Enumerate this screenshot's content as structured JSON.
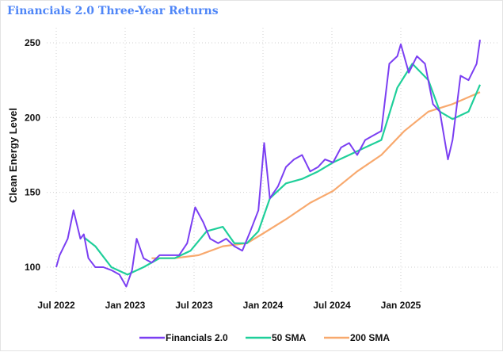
{
  "chart_data": {
    "type": "line",
    "title": "Financials 2.0 Three-Year Returns",
    "xlabel": "",
    "ylabel": "Clean Energy Level",
    "x_unit": "months since Jul 2022",
    "xlim": [
      0,
      37.5
    ],
    "ylim": [
      84,
      260
    ],
    "grid": true,
    "legend_position": "bottom",
    "yticks": [
      100,
      150,
      200,
      250
    ],
    "xticks": [
      {
        "t": 0,
        "label": "Jul 2022"
      },
      {
        "t": 6,
        "label": "Jan 2023"
      },
      {
        "t": 12,
        "label": "Jul 2023"
      },
      {
        "t": 18,
        "label": "Jan 2024"
      },
      {
        "t": 24,
        "label": "Jul 2024"
      },
      {
        "t": 30,
        "label": "Jan 2025"
      }
    ],
    "series": [
      {
        "name": "Financials 2.0",
        "color": "#7b3ff2",
        "points": [
          [
            0,
            100
          ],
          [
            0.3,
            108
          ],
          [
            1,
            119
          ],
          [
            1.5,
            138
          ],
          [
            2.1,
            119
          ],
          [
            2.4,
            122
          ],
          [
            2.8,
            106
          ],
          [
            3.4,
            100
          ],
          [
            4.1,
            100
          ],
          [
            4.8,
            98
          ],
          [
            5.5,
            95
          ],
          [
            6.1,
            87
          ],
          [
            6.6,
            98
          ],
          [
            7,
            119
          ],
          [
            7.6,
            106
          ],
          [
            8.3,
            103
          ],
          [
            9,
            108
          ],
          [
            10,
            108
          ],
          [
            10.7,
            108
          ],
          [
            11.4,
            116
          ],
          [
            12.1,
            140
          ],
          [
            12.8,
            130
          ],
          [
            13.4,
            119
          ],
          [
            14.1,
            116
          ],
          [
            14.8,
            119
          ],
          [
            15.5,
            114
          ],
          [
            16.2,
            111
          ],
          [
            16.9,
            124
          ],
          [
            17.6,
            138
          ],
          [
            18.1,
            183
          ],
          [
            18.6,
            146
          ],
          [
            19.3,
            154
          ],
          [
            20,
            167
          ],
          [
            20.7,
            172
          ],
          [
            21.4,
            175
          ],
          [
            22.1,
            164
          ],
          [
            22.8,
            167
          ],
          [
            23.4,
            172
          ],
          [
            24.1,
            170
          ],
          [
            24.8,
            180
          ],
          [
            25.5,
            183
          ],
          [
            26.2,
            175
          ],
          [
            26.9,
            185
          ],
          [
            27.6,
            188
          ],
          [
            28.3,
            191
          ],
          [
            29,
            236
          ],
          [
            29.7,
            241
          ],
          [
            30,
            249
          ],
          [
            30.7,
            230
          ],
          [
            31.4,
            241
          ],
          [
            32.1,
            236
          ],
          [
            32.8,
            209
          ],
          [
            33.4,
            204
          ],
          [
            34.1,
            172
          ],
          [
            34.5,
            185
          ],
          [
            35.2,
            228
          ],
          [
            35.9,
            225
          ],
          [
            36.6,
            236
          ],
          [
            36.9,
            252
          ]
        ]
      },
      {
        "name": "50 SMA",
        "color": "#1fcf9a",
        "points": [
          [
            2.4,
            120
          ],
          [
            3.4,
            114
          ],
          [
            4.8,
            100
          ],
          [
            6.2,
            95
          ],
          [
            7.6,
            100
          ],
          [
            9,
            106
          ],
          [
            10.3,
            106
          ],
          [
            11.7,
            111
          ],
          [
            13.1,
            124
          ],
          [
            14.5,
            127
          ],
          [
            15.5,
            116
          ],
          [
            16.6,
            116
          ],
          [
            17.6,
            124
          ],
          [
            18.6,
            146
          ],
          [
            20,
            156
          ],
          [
            21.4,
            159
          ],
          [
            22.8,
            164
          ],
          [
            24.1,
            170
          ],
          [
            25.5,
            175
          ],
          [
            26.9,
            180
          ],
          [
            28.3,
            185
          ],
          [
            29.7,
            220
          ],
          [
            31,
            236
          ],
          [
            32.4,
            225
          ],
          [
            33.4,
            204
          ],
          [
            34.5,
            199
          ],
          [
            35.9,
            204
          ],
          [
            36.9,
            222
          ]
        ]
      },
      {
        "name": "200 SMA",
        "color": "#f8a96e",
        "points": [
          [
            8.3,
            106
          ],
          [
            10.3,
            106
          ],
          [
            12.4,
            108
          ],
          [
            14.5,
            114
          ],
          [
            16.6,
            116
          ],
          [
            17.9,
            122
          ],
          [
            20,
            132
          ],
          [
            22.1,
            143
          ],
          [
            24.1,
            151
          ],
          [
            26.2,
            164
          ],
          [
            28.3,
            175
          ],
          [
            30.3,
            191
          ],
          [
            32.4,
            204
          ],
          [
            34.5,
            209
          ],
          [
            36.9,
            217
          ]
        ]
      }
    ]
  }
}
